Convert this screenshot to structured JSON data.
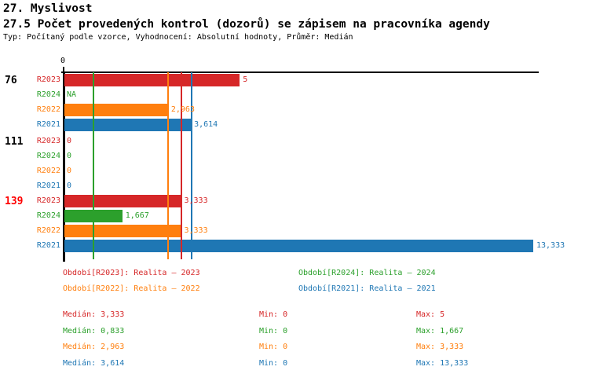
{
  "header": {
    "section_title": "27. Myslivost",
    "title": "27.5 Počet provedených kontrol (dozorů) se zápisem na pracovníka agendy",
    "subtitle": "Typ: Počítaný podle vzorce, Vyhodnocení: Absolutní hodnoty, Průměr: Medián"
  },
  "series_colors": {
    "R2023": "#d62728",
    "R2024": "#2ca02c",
    "R2022": "#ff7f0e",
    "R2021": "#1f77b4"
  },
  "chart_data": {
    "type": "bar",
    "orientation": "horizontal",
    "x_axis": {
      "tick_label": "0",
      "min": 0,
      "max": 13.333
    },
    "grid": false,
    "groups": [
      {
        "label": "76",
        "label_color": "#000000",
        "bars": [
          {
            "series": "R2023",
            "value": 5,
            "display": "5"
          },
          {
            "series": "R2024",
            "value": null,
            "display": "NA"
          },
          {
            "series": "R2022",
            "value": 2.963,
            "display": "2,963"
          },
          {
            "series": "R2021",
            "value": 3.614,
            "display": "3,614"
          }
        ]
      },
      {
        "label": "111",
        "label_color": "#000000",
        "bars": [
          {
            "series": "R2023",
            "value": 0,
            "display": "0"
          },
          {
            "series": "R2024",
            "value": 0,
            "display": "0"
          },
          {
            "series": "R2022",
            "value": 0,
            "display": "0"
          },
          {
            "series": "R2021",
            "value": 0,
            "display": "0"
          }
        ]
      },
      {
        "label": "139",
        "label_color": "#ff0000",
        "bars": [
          {
            "series": "R2023",
            "value": 3.333,
            "display": "3,333"
          },
          {
            "series": "R2024",
            "value": 1.667,
            "display": "1,667"
          },
          {
            "series": "R2022",
            "value": 3.333,
            "display": "3,333"
          },
          {
            "series": "R2021",
            "value": 13.333,
            "display": "13,333"
          }
        ]
      }
    ],
    "median_lines": [
      {
        "series": "R2023",
        "value": 3.333
      },
      {
        "series": "R2024",
        "value": 0.833
      },
      {
        "series": "R2022",
        "value": 2.963
      },
      {
        "series": "R2021",
        "value": 3.614
      }
    ]
  },
  "legend": [
    {
      "series": "R2023",
      "label": "Období[R2023]: Realita – 2023"
    },
    {
      "series": "R2024",
      "label": "Období[R2024]: Realita – 2024"
    },
    {
      "series": "R2022",
      "label": "Období[R2022]: Realita – 2022"
    },
    {
      "series": "R2021",
      "label": "Období[R2021]: Realita – 2021"
    }
  ],
  "stats": [
    {
      "series": "R2023",
      "median": "Medián: 3,333",
      "min": "Min: 0",
      "max": "Max: 5"
    },
    {
      "series": "R2024",
      "median": "Medián: 0,833",
      "min": "Min: 0",
      "max": "Max: 1,667"
    },
    {
      "series": "R2022",
      "median": "Medián: 2,963",
      "min": "Min: 0",
      "max": "Max: 3,333"
    },
    {
      "series": "R2021",
      "median": "Medián: 3,614",
      "min": "Min: 0",
      "max": "Max: 13,333"
    }
  ]
}
